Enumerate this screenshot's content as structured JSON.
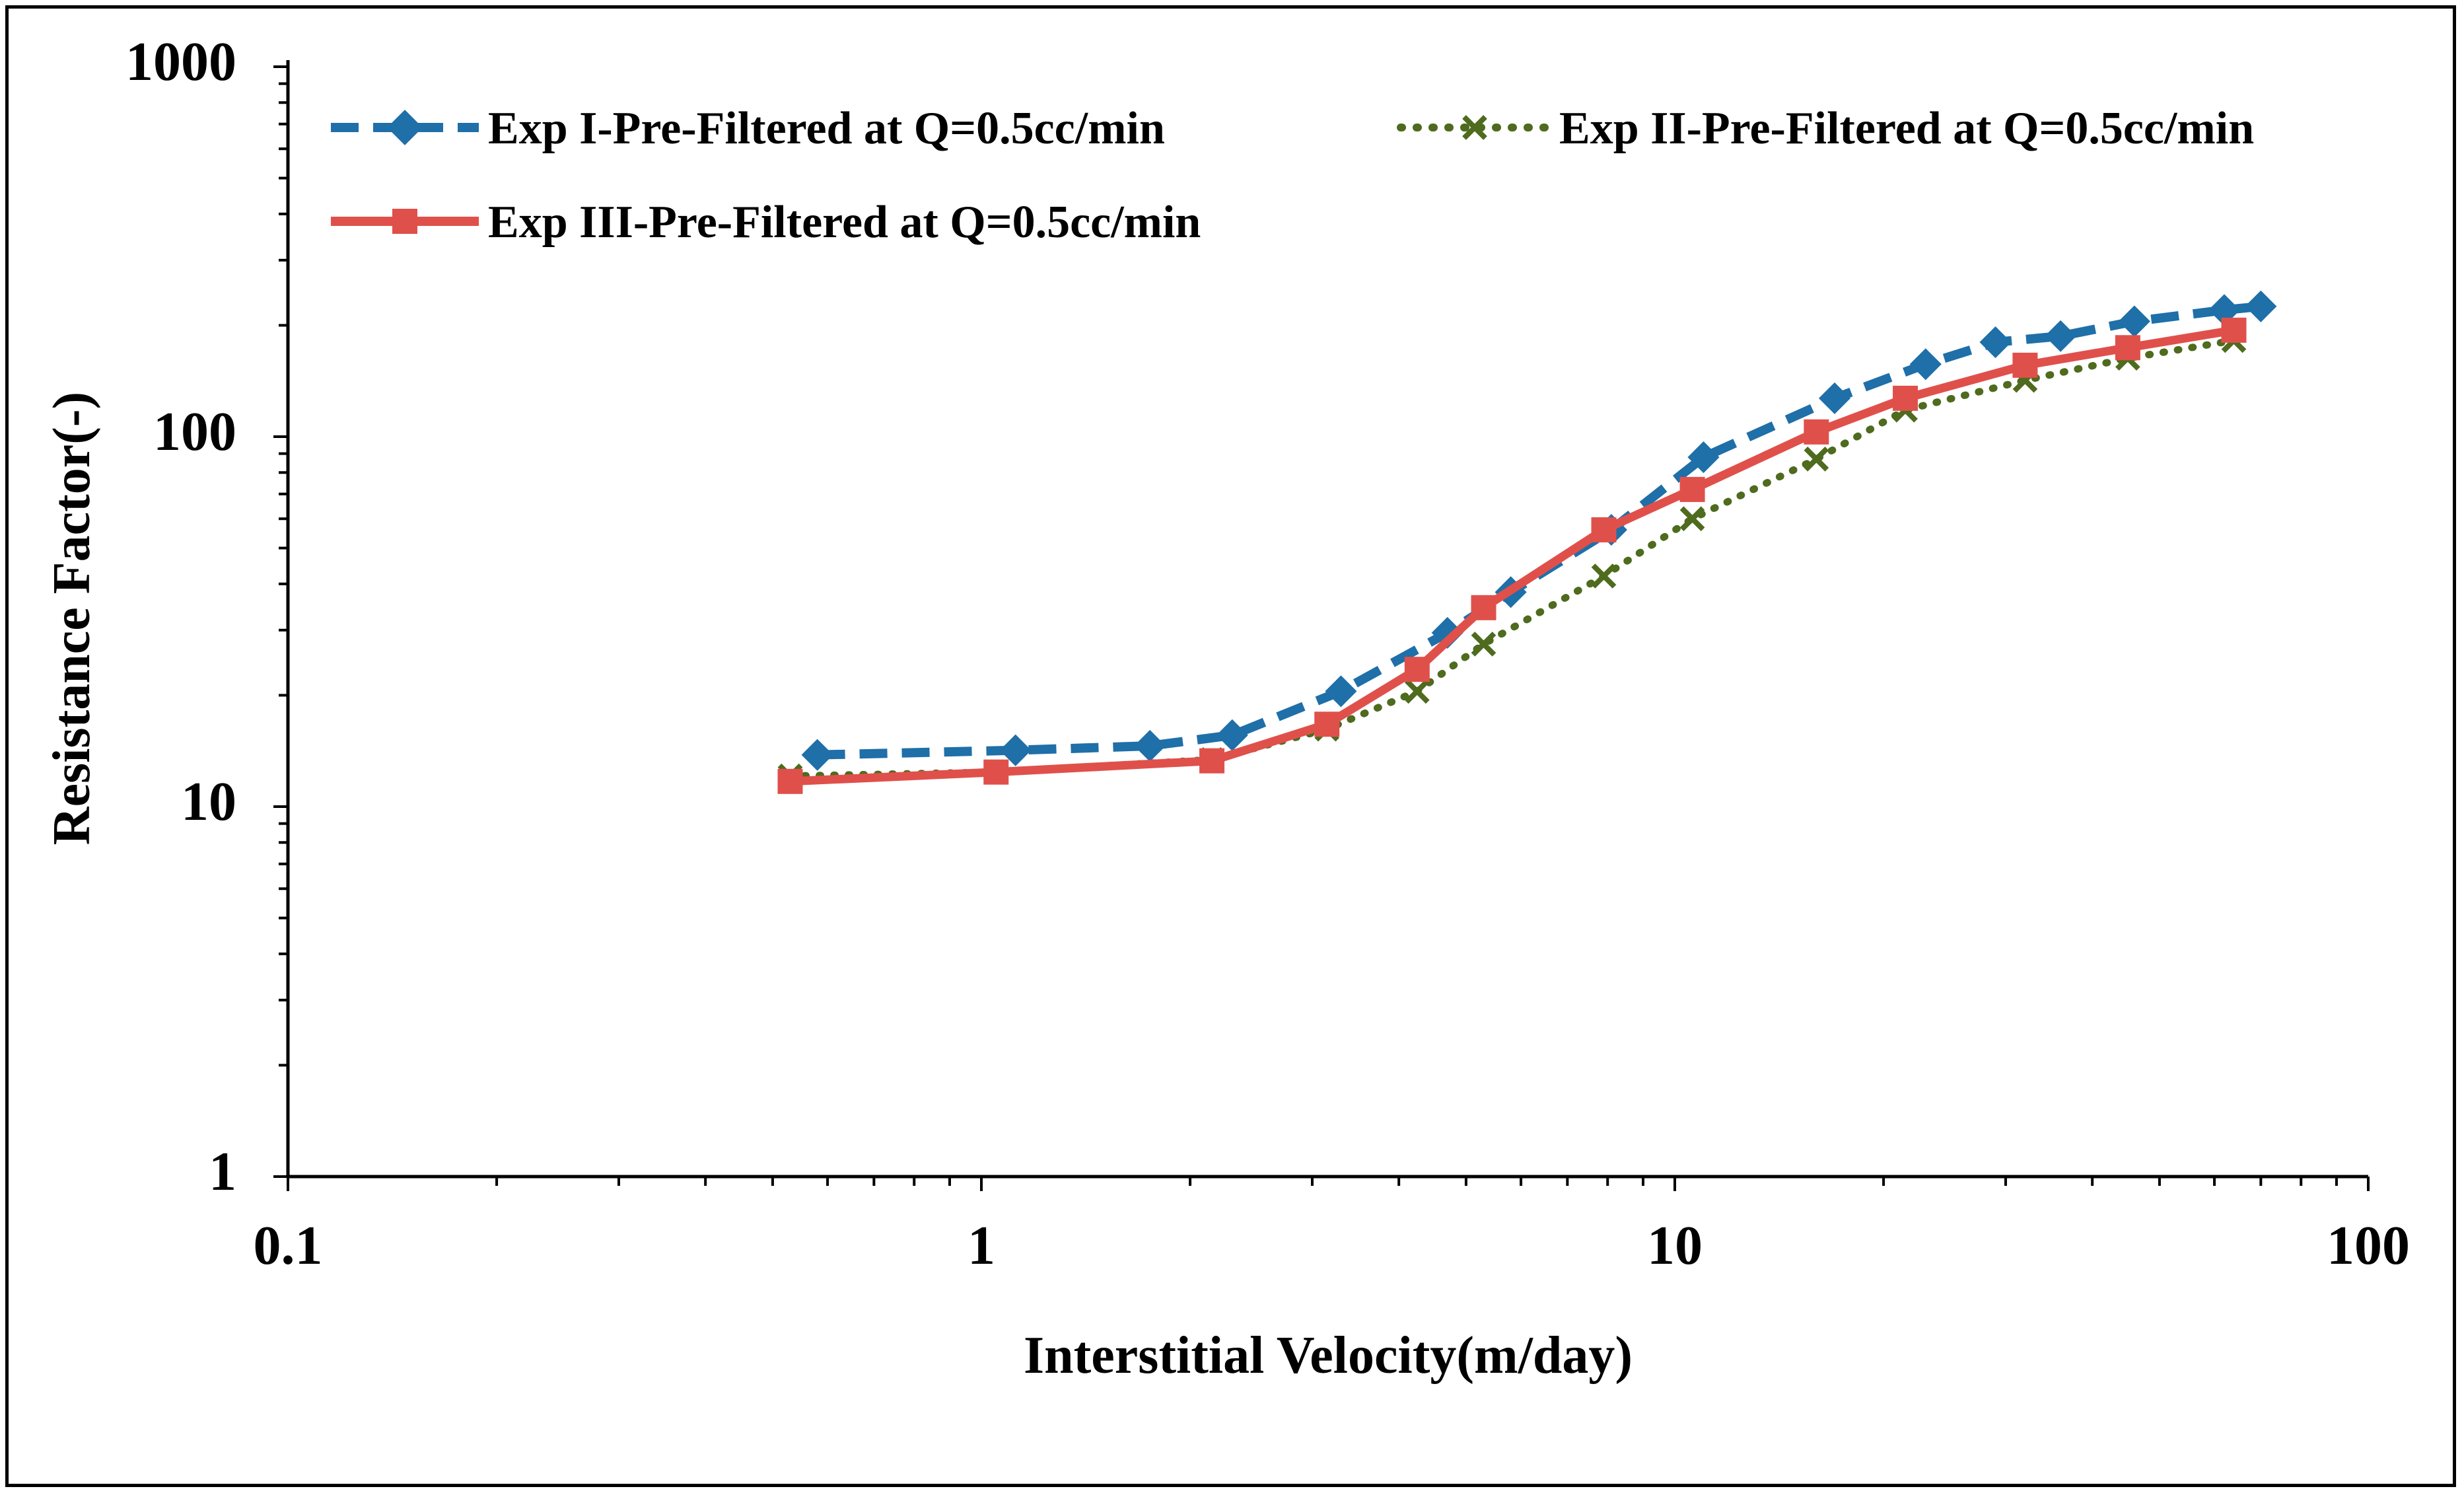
{
  "chart_data": {
    "type": "line",
    "xscale": "log",
    "yscale": "log",
    "xlabel": "Interstitial Velocity(m/day)",
    "ylabel": "Resistance Factor(-)",
    "xlim": [
      0.1,
      100
    ],
    "ylim": [
      1,
      1000
    ],
    "x_tick_labels": [
      "0.1",
      "1",
      "10",
      "100"
    ],
    "y_tick_labels": [
      "1",
      "10",
      "100",
      "1000"
    ],
    "grid": false,
    "legend_position": "top",
    "series": [
      {
        "name": "Exp I-Pre-Filtered at Q=0.5cc/min",
        "color": "#1F6FA8",
        "line_style": "dashed",
        "marker": "diamond",
        "x": [
          0.58,
          1.12,
          1.75,
          2.3,
          3.3,
          4.7,
          5.8,
          8.1,
          11,
          17,
          23,
          29,
          36,
          46,
          62,
          70
        ],
        "y": [
          13.8,
          14.2,
          14.6,
          15.6,
          20.5,
          29.5,
          38,
          56,
          88,
          127,
          157,
          180,
          187,
          205,
          220,
          225
        ]
      },
      {
        "name": "Exp II-Pre-Filtered at Q=0.5cc/min",
        "color": "#4E6B1E",
        "line_style": "dotted",
        "marker": "x",
        "x": [
          0.53,
          1.05,
          2.15,
          3.15,
          4.25,
          5.3,
          7.9,
          10.6,
          16,
          21.5,
          32,
          45,
          64
        ],
        "y": [
          12.1,
          12.4,
          13.4,
          16.2,
          20.5,
          27.5,
          42,
          60,
          87,
          118,
          142,
          163,
          182
        ]
      },
      {
        "name": "Exp III-Pre-Filtered at Q=0.5cc/min",
        "color": "#E0504B",
        "line_style": "solid",
        "marker": "square",
        "x": [
          0.53,
          1.05,
          2.15,
          3.15,
          4.25,
          5.3,
          7.9,
          10.6,
          16,
          21.5,
          32,
          45,
          64
        ],
        "y": [
          11.7,
          12.4,
          13.3,
          16.7,
          23.5,
          34.5,
          56,
          72,
          103,
          127,
          156,
          174,
          194
        ]
      }
    ]
  }
}
